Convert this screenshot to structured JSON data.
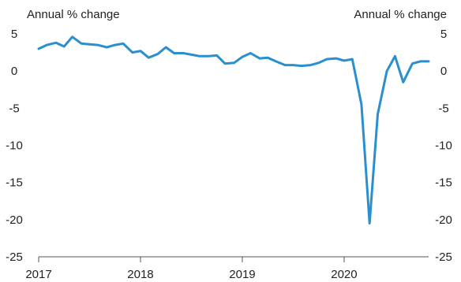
{
  "chart_data": {
    "type": "line",
    "ylabel_left": "Annual % change",
    "ylabel_right": "Annual % change",
    "ylim": [
      -25,
      5
    ],
    "yticks": [
      5,
      0,
      -5,
      -10,
      -15,
      -20,
      -25
    ],
    "ytick_labels": [
      "5",
      "0",
      "-5",
      "-10",
      "-15",
      "-20",
      "-25"
    ],
    "xlim": [
      2017.0,
      2020.83
    ],
    "xticks": [
      2017,
      2018,
      2019,
      2020
    ],
    "xtick_labels": [
      "2017",
      "2018",
      "2019",
      "2020"
    ],
    "grid": false,
    "line_color": "#2a8fcf",
    "series": [
      {
        "x": [
          2017.0,
          2017.08,
          2017.17,
          2017.25,
          2017.33,
          2017.42,
          2017.5,
          2017.58,
          2017.67,
          2017.75,
          2017.83,
          2017.92,
          2018.0,
          2018.08,
          2018.17,
          2018.25,
          2018.33,
          2018.42,
          2018.5,
          2018.58,
          2018.67,
          2018.75,
          2018.83,
          2018.92,
          2019.0,
          2019.08,
          2019.17,
          2019.25,
          2019.33,
          2019.42,
          2019.5,
          2019.58,
          2019.67,
          2019.75,
          2019.83,
          2019.92,
          2020.0,
          2020.08,
          2020.17,
          2020.25,
          2020.33,
          2020.42,
          2020.5,
          2020.58,
          2020.67,
          2020.75,
          2020.83
        ],
        "values": [
          3.0,
          3.5,
          3.8,
          3.3,
          4.6,
          3.7,
          3.6,
          3.5,
          3.2,
          3.5,
          3.7,
          2.5,
          2.7,
          1.8,
          2.3,
          3.2,
          2.4,
          2.4,
          2.2,
          2.0,
          2.0,
          2.1,
          1.0,
          1.1,
          1.9,
          2.4,
          1.7,
          1.8,
          1.3,
          0.8,
          0.8,
          0.7,
          0.8,
          1.1,
          1.6,
          1.7,
          1.4,
          1.6,
          -4.5,
          -20.5,
          -5.8,
          0.0,
          2.0,
          -1.5,
          1.0,
          1.3,
          1.3
        ]
      }
    ]
  }
}
